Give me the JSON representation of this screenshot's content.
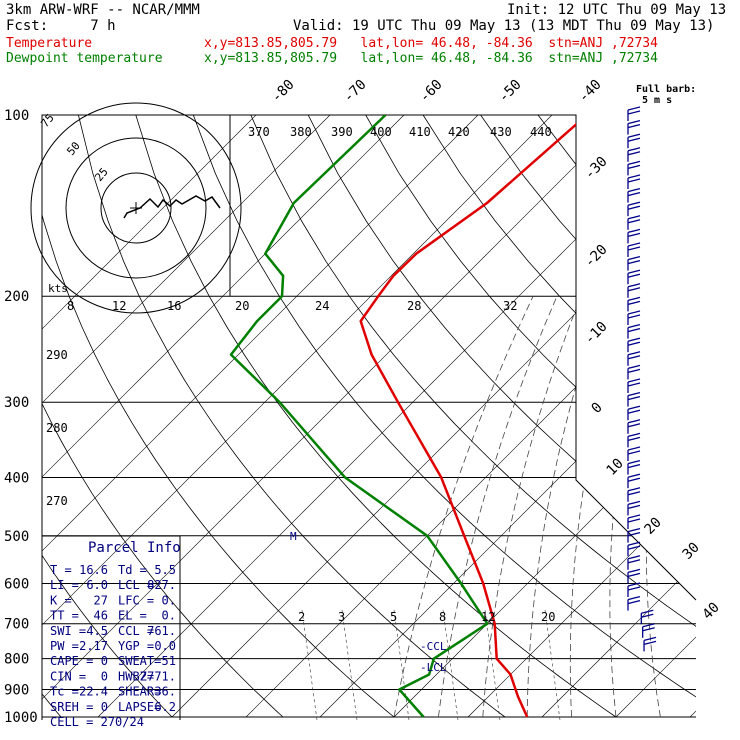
{
  "header": {
    "model": "3km ARW-WRF -- NCAR/MMM",
    "init": "Init: 12 UTC Thu 09 May 13",
    "fcst": "Fcst:     7 h",
    "valid": "Valid: 19 UTC Thu 09 May 13 (13 MDT Thu 09 May 13)",
    "temp_label": "Temperature",
    "temp_loc": "x,y=813.85,805.79   lat,lon= 46.48, -84.36  stn=ANJ ,72734",
    "dew_label": "Dewpoint temperature",
    "dew_loc": "x,y=813.85,805.79   lat,lon= 46.48, -84.36  stn=ANJ ,72734",
    "barb_legend": "Full barb:",
    "barb_unit": "5 m s",
    "hodo_unit": "kts"
  },
  "colors": {
    "temperature": "#e00000",
    "dewpoint": "#008000",
    "parcel_text": "#000080",
    "grid": "#000000"
  },
  "chart_data": {
    "type": "line",
    "pressure_levels": [
      100,
      200,
      300,
      400,
      500,
      600,
      700,
      800,
      900,
      1000
    ],
    "pressure_labels": [
      "100",
      "200",
      "300",
      "400",
      "500",
      "600",
      "700",
      "800",
      "900",
      "1000"
    ],
    "temperature_ticks": [
      "-80",
      "-70",
      "-60",
      "-50",
      "-40",
      "-30",
      "-20",
      "-10",
      "0",
      "10",
      "20",
      "30",
      "40"
    ],
    "theta_labels": [
      "370",
      "380",
      "390",
      "400",
      "410",
      "420",
      "430",
      "440"
    ],
    "theta_low_labels": [
      "290",
      "280",
      "270"
    ],
    "mixing_ratio_labels": [
      "2",
      "3",
      "5",
      "8",
      "12",
      "20"
    ],
    "hodo_speed_labels": [
      "8",
      "12",
      "16",
      "20",
      "24",
      "28",
      "32"
    ],
    "hodo_ring_labels": [
      "75",
      "50",
      "25"
    ],
    "series": [
      {
        "name": "Temperature",
        "points": [
          [
            100,
            -55.3
          ],
          [
            140,
            -56.9
          ],
          [
            170,
            -59.6
          ],
          [
            185,
            -59.7
          ],
          [
            200,
            -59
          ],
          [
            220,
            -58
          ],
          [
            250,
            -52
          ],
          [
            300,
            -42
          ],
          [
            400,
            -26
          ],
          [
            500,
            -15
          ],
          [
            600,
            -6
          ],
          [
            700,
            1
          ],
          [
            800,
            6
          ],
          [
            850,
            10
          ],
          [
            925,
            14
          ],
          [
            1000,
            18
          ]
        ]
      },
      {
        "name": "Dewpoint temperature",
        "points": [
          [
            100,
            -82.5
          ],
          [
            140,
            -83
          ],
          [
            170,
            -80
          ],
          [
            185,
            -74.6
          ],
          [
            200,
            -72
          ],
          [
            220,
            -72
          ],
          [
            250,
            -71
          ],
          [
            300,
            -58
          ],
          [
            400,
            -39
          ],
          [
            500,
            -20
          ],
          [
            600,
            -9
          ],
          [
            700,
            0
          ],
          [
            800,
            -2.5
          ],
          [
            850,
            -1
          ],
          [
            900,
            -3
          ],
          [
            1000,
            4
          ]
        ]
      }
    ],
    "parcel_markers": [
      "M",
      "-CCL",
      "-LCL"
    ],
    "ylim": [
      1000,
      100
    ],
    "grid": true
  },
  "parcel_info": {
    "title": "Parcel Info",
    "rows": [
      [
        "T  =",
        "16.6",
        "Td =",
        "5.5"
      ],
      [
        "LI =",
        "6.0",
        "LCL =",
        "827."
      ],
      [
        "K  =",
        "27",
        "LFC =",
        "0."
      ],
      [
        "TT =",
        "46",
        "EL =",
        "0."
      ],
      [
        "SWI =",
        "4.5",
        "CCL =",
        "761."
      ],
      [
        "PW =",
        "2.17",
        "YGP =",
        "0.0"
      ],
      [
        "CAPE =",
        "0",
        "SWEAT=",
        "51"
      ],
      [
        "CIN =",
        "0",
        "HWBZ=",
        "2771."
      ],
      [
        "Tc =",
        "22.4",
        "SHEAR=",
        "36."
      ],
      [
        "SREH =",
        "0",
        "LAPSE=",
        "6.2"
      ]
    ],
    "cell": "CELL = 270/24"
  }
}
